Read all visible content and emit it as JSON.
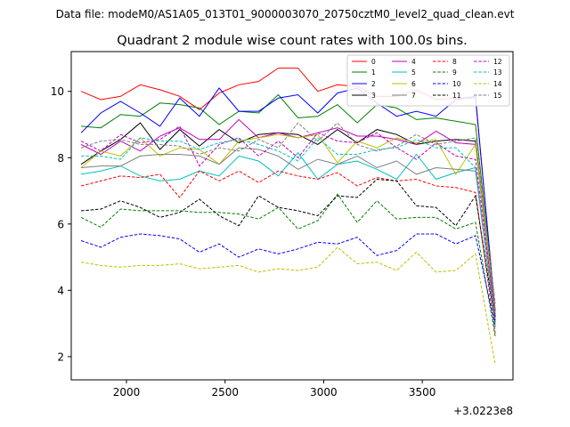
{
  "suptitle": "Data file: modeM0/AS1A05_013T01_9000003070_20750cztM0_level2_quad_clean.evt",
  "chart_data": {
    "type": "line",
    "title": "Quadrant 2 module wise count rates with 100.0s bins.",
    "xlabel": "",
    "ylabel": "",
    "x_offset_label": "+3.0223e8",
    "xlim": [
      1720,
      3960
    ],
    "ylim": [
      1.3,
      11.2
    ],
    "xticks": [
      2000,
      2500,
      3000,
      3500
    ],
    "yticks": [
      2,
      4,
      6,
      8,
      10
    ],
    "grid": false,
    "legend_position": "top-right",
    "x": [
      1770,
      1870,
      1970,
      2070,
      2170,
      2270,
      2370,
      2470,
      2570,
      2670,
      2770,
      2870,
      2970,
      3070,
      3170,
      3270,
      3370,
      3470,
      3570,
      3670,
      3770,
      3870
    ],
    "series": [
      {
        "name": "0",
        "color": "#ff0000",
        "dash": "solid",
        "values": [
          10.0,
          9.75,
          9.85,
          10.2,
          10.05,
          9.85,
          9.45,
          9.95,
          10.2,
          10.3,
          10.7,
          10.7,
          10.0,
          10.2,
          10.15,
          9.85,
          9.85,
          10.05,
          9.75,
          9.8,
          9.8,
          3.3
        ]
      },
      {
        "name": "1",
        "color": "#008000",
        "dash": "solid",
        "values": [
          8.95,
          8.9,
          9.3,
          9.25,
          9.65,
          9.6,
          9.5,
          9.0,
          9.4,
          9.35,
          9.9,
          9.2,
          9.25,
          9.6,
          9.05,
          9.6,
          9.5,
          9.15,
          9.2,
          9.1,
          9.0,
          3.4
        ]
      },
      {
        "name": "2",
        "color": "#0000ff",
        "dash": "solid",
        "values": [
          8.75,
          9.35,
          9.7,
          9.35,
          8.95,
          9.8,
          9.25,
          10.1,
          9.4,
          9.4,
          9.8,
          9.9,
          9.35,
          9.95,
          10.1,
          9.65,
          9.25,
          9.4,
          9.25,
          9.75,
          9.85,
          3.3
        ]
      },
      {
        "name": "3",
        "color": "#000000",
        "dash": "solid",
        "values": [
          7.8,
          8.2,
          8.55,
          9.05,
          8.25,
          8.85,
          8.35,
          8.85,
          8.45,
          8.7,
          8.75,
          8.7,
          8.4,
          8.85,
          8.45,
          8.85,
          8.7,
          8.4,
          8.5,
          8.55,
          8.5,
          3.2
        ]
      },
      {
        "name": "4",
        "color": "#bf00bf",
        "dash": "solid",
        "values": [
          8.4,
          8.1,
          8.5,
          8.2,
          8.65,
          8.9,
          8.55,
          8.55,
          9.15,
          8.6,
          8.75,
          8.6,
          8.75,
          8.9,
          8.65,
          8.65,
          8.55,
          8.4,
          8.8,
          8.45,
          8.4,
          3.1
        ]
      },
      {
        "name": "5",
        "color": "#00bfbf",
        "dash": "solid",
        "values": [
          7.5,
          7.6,
          7.75,
          7.45,
          7.3,
          7.35,
          7.6,
          7.45,
          8.05,
          7.9,
          7.45,
          8.15,
          7.35,
          7.8,
          7.9,
          7.65,
          7.35,
          8.1,
          7.35,
          7.55,
          7.7,
          2.9
        ]
      },
      {
        "name": "6",
        "color": "#bfbf00",
        "dash": "solid",
        "values": [
          7.7,
          8.2,
          8.05,
          8.6,
          8.05,
          8.3,
          8.25,
          7.8,
          8.5,
          8.6,
          8.7,
          8.6,
          8.7,
          7.85,
          8.5,
          8.3,
          8.6,
          8.45,
          8.55,
          7.5,
          8.4,
          3.3
        ]
      },
      {
        "name": "7",
        "color": "#7f7f7f",
        "dash": "solid",
        "values": [
          7.7,
          7.75,
          7.75,
          8.05,
          8.1,
          8.1,
          8.05,
          7.8,
          8.3,
          8.25,
          8.05,
          7.65,
          7.95,
          7.8,
          8.05,
          7.7,
          7.9,
          7.5,
          7.7,
          7.65,
          7.6,
          3.0
        ]
      },
      {
        "name": "8",
        "color": "#ff0000",
        "dash": "dashed",
        "values": [
          7.15,
          7.3,
          7.45,
          7.4,
          7.5,
          6.8,
          7.6,
          7.3,
          7.6,
          7.25,
          7.6,
          7.45,
          7.35,
          7.55,
          7.15,
          7.4,
          7.3,
          7.35,
          7.15,
          7.1,
          6.95,
          2.7
        ]
      },
      {
        "name": "9",
        "color": "#008000",
        "dash": "dashed",
        "values": [
          6.2,
          5.9,
          6.45,
          6.4,
          6.4,
          6.4,
          6.35,
          6.35,
          6.3,
          6.15,
          6.5,
          5.85,
          6.1,
          6.9,
          6.05,
          6.7,
          6.15,
          6.2,
          6.2,
          5.85,
          6.05,
          2.6
        ]
      },
      {
        "name": "10",
        "color": "#0000ff",
        "dash": "dashed",
        "values": [
          5.5,
          5.3,
          5.6,
          5.7,
          5.65,
          5.55,
          5.15,
          5.4,
          5.0,
          5.25,
          5.1,
          5.25,
          5.45,
          5.4,
          5.6,
          5.05,
          5.2,
          5.7,
          5.7,
          5.4,
          5.65,
          2.9
        ]
      },
      {
        "name": "11",
        "color": "#000000",
        "dash": "dashed",
        "values": [
          6.4,
          6.45,
          6.7,
          6.5,
          6.2,
          6.35,
          6.75,
          6.25,
          5.95,
          6.85,
          6.5,
          6.4,
          6.25,
          6.85,
          6.8,
          7.35,
          7.3,
          6.55,
          6.5,
          5.95,
          6.85,
          3.0
        ]
      },
      {
        "name": "12",
        "color": "#bf00bf",
        "dash": "dashed",
        "values": [
          8.5,
          8.2,
          8.7,
          8.45,
          8.55,
          8.95,
          7.75,
          8.4,
          8.6,
          8.05,
          8.5,
          8.0,
          8.75,
          8.5,
          8.45,
          8.75,
          8.3,
          7.95,
          8.45,
          8.05,
          7.95,
          3.2
        ]
      },
      {
        "name": "13",
        "color": "#00bfbf",
        "dash": "dashed",
        "values": [
          8.05,
          8.05,
          7.95,
          8.6,
          8.5,
          8.5,
          8.25,
          8.45,
          8.55,
          8.4,
          8.2,
          7.9,
          8.6,
          8.1,
          8.1,
          8.25,
          8.3,
          8.55,
          8.3,
          8.3,
          7.7,
          2.9
        ]
      },
      {
        "name": "14",
        "color": "#bfbf00",
        "dash": "dashed",
        "values": [
          4.85,
          4.75,
          4.7,
          4.75,
          4.75,
          4.8,
          4.65,
          4.7,
          4.75,
          4.55,
          4.65,
          4.6,
          4.7,
          5.3,
          4.8,
          4.85,
          4.6,
          5.15,
          4.55,
          4.6,
          5.1,
          1.75
        ]
      },
      {
        "name": "15",
        "color": "#7f7f7f",
        "dash": "dashed",
        "values": [
          8.3,
          8.5,
          8.55,
          8.4,
          8.4,
          8.35,
          8.1,
          8.3,
          8.2,
          8.55,
          8.3,
          9.05,
          8.5,
          9.05,
          8.4,
          8.2,
          8.35,
          8.7,
          8.4,
          8.5,
          8.6,
          3.6
        ]
      }
    ]
  }
}
